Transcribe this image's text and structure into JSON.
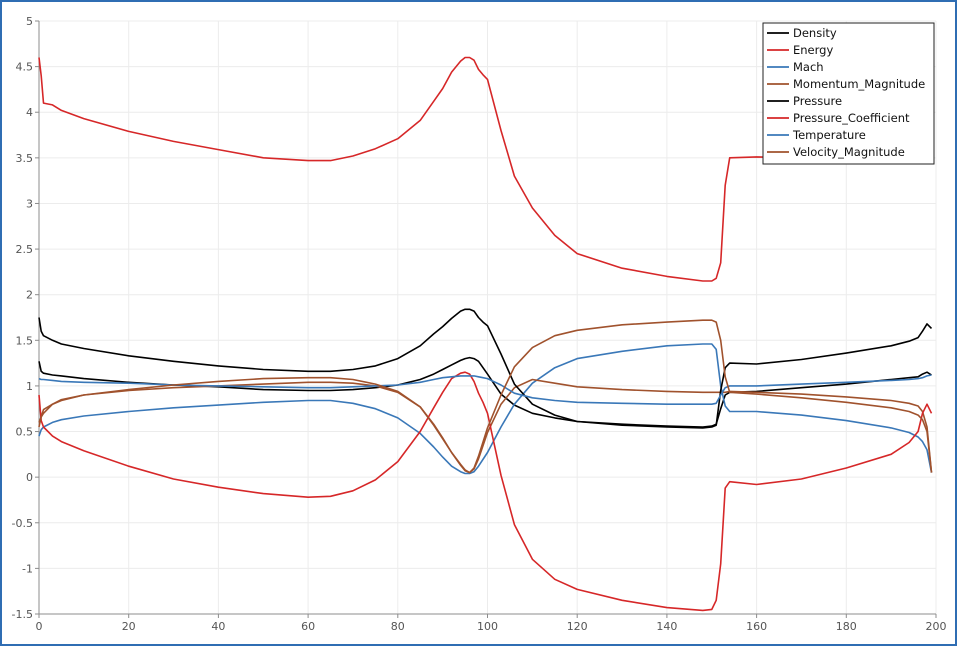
{
  "chart_data": {
    "type": "line",
    "xlim": [
      0,
      200
    ],
    "ylim": [
      -1.5,
      5
    ],
    "x_ticks": [
      "0",
      "20",
      "40",
      "60",
      "80",
      "100",
      "120",
      "140",
      "160",
      "180",
      "200"
    ],
    "y_ticks": [
      "5",
      "4.5",
      "4",
      "3.5",
      "3",
      "2.5",
      "2",
      "1.5",
      "1",
      "0.5",
      "0",
      "-0.5",
      "-1",
      "-1.5"
    ],
    "grid": true,
    "legend_position": "top-right",
    "series": [
      {
        "name": "Density",
        "color": "#000000",
        "x": [
          0,
          0.5,
          1,
          3,
          5,
          10,
          20,
          30,
          40,
          50,
          60,
          65,
          70,
          75,
          80,
          85,
          88,
          90,
          92,
          94,
          95,
          96,
          97,
          98,
          100,
          103,
          106,
          110,
          115,
          120,
          130,
          140,
          148,
          150,
          151,
          152,
          153,
          154,
          160,
          170,
          180,
          190,
          194,
          196,
          197,
          198,
          199
        ],
        "y": [
          1.27,
          1.16,
          1.14,
          1.12,
          1.11,
          1.08,
          1.04,
          1.01,
          0.99,
          0.96,
          0.95,
          0.95,
          0.96,
          0.98,
          1.01,
          1.07,
          1.13,
          1.18,
          1.23,
          1.28,
          1.3,
          1.31,
          1.3,
          1.27,
          1.13,
          0.91,
          0.79,
          0.7,
          0.65,
          0.61,
          0.58,
          0.56,
          0.55,
          0.56,
          0.58,
          0.75,
          0.9,
          0.93,
          0.94,
          0.98,
          1.02,
          1.07,
          1.09,
          1.1,
          1.13,
          1.15,
          1.12
        ]
      },
      {
        "name": "Energy",
        "color": "#d62728",
        "x": [
          0,
          0.5,
          1,
          3,
          5,
          10,
          20,
          30,
          40,
          50,
          60,
          65,
          70,
          75,
          80,
          85,
          88,
          90,
          92,
          94,
          95,
          96,
          97,
          98,
          99,
          100,
          103,
          106,
          110,
          115,
          120,
          130,
          140,
          148,
          150,
          151,
          152,
          153,
          154,
          160,
          170,
          180,
          190,
          194,
          196,
          197,
          198,
          199
        ],
        "y": [
          4.6,
          4.4,
          4.1,
          4.08,
          4.02,
          3.93,
          3.79,
          3.68,
          3.59,
          3.5,
          3.47,
          3.47,
          3.52,
          3.6,
          3.71,
          3.91,
          4.12,
          4.26,
          4.44,
          4.56,
          4.6,
          4.6,
          4.57,
          4.47,
          4.41,
          4.36,
          3.8,
          3.3,
          2.95,
          2.65,
          2.45,
          2.29,
          2.2,
          2.15,
          2.15,
          2.18,
          2.35,
          3.2,
          3.5,
          3.51,
          3.5,
          3.5,
          3.5,
          3.5,
          3.5,
          3.5,
          3.5,
          3.5
        ]
      },
      {
        "name": "Mach",
        "color": "#3a78b8",
        "x": [
          0,
          0.5,
          1,
          3,
          5,
          10,
          20,
          30,
          40,
          50,
          60,
          65,
          70,
          75,
          80,
          85,
          88,
          90,
          92,
          94,
          95,
          96,
          97,
          98,
          100,
          103,
          106,
          110,
          115,
          120,
          130,
          140,
          148,
          150,
          151,
          152,
          153,
          154,
          160,
          170,
          180,
          190,
          194,
          196,
          197,
          198,
          199
        ],
        "y": [
          0.45,
          0.52,
          0.55,
          0.6,
          0.63,
          0.67,
          0.72,
          0.76,
          0.79,
          0.82,
          0.84,
          0.84,
          0.81,
          0.75,
          0.65,
          0.48,
          0.33,
          0.22,
          0.12,
          0.06,
          0.04,
          0.04,
          0.06,
          0.12,
          0.27,
          0.55,
          0.8,
          1.03,
          1.2,
          1.3,
          1.38,
          1.44,
          1.46,
          1.46,
          1.4,
          1.0,
          0.78,
          0.72,
          0.72,
          0.68,
          0.62,
          0.54,
          0.49,
          0.44,
          0.39,
          0.3,
          0.05
        ]
      },
      {
        "name": "Momentum_Magnitude",
        "color": "#a0522d",
        "x": [
          0,
          0.5,
          1,
          3,
          5,
          10,
          20,
          30,
          40,
          50,
          60,
          65,
          70,
          75,
          80,
          85,
          88,
          90,
          92,
          94,
          95,
          96,
          97,
          98,
          100,
          103,
          106,
          110,
          115,
          120,
          130,
          140,
          148,
          150,
          151,
          152,
          153,
          154,
          160,
          170,
          180,
          190,
          194,
          196,
          197,
          198,
          199
        ],
        "y": [
          0.6,
          0.66,
          0.7,
          0.8,
          0.85,
          0.9,
          0.95,
          0.98,
          1.0,
          1.02,
          1.04,
          1.04,
          1.03,
          1.0,
          0.93,
          0.77,
          0.58,
          0.43,
          0.27,
          0.13,
          0.07,
          0.05,
          0.09,
          0.2,
          0.49,
          0.8,
          0.98,
          1.07,
          1.03,
          0.99,
          0.96,
          0.94,
          0.93,
          0.93,
          0.93,
          0.93,
          0.93,
          0.94,
          0.93,
          0.91,
          0.88,
          0.84,
          0.81,
          0.78,
          0.72,
          0.55,
          0.05
        ]
      },
      {
        "name": "Pressure",
        "color": "#000000",
        "x": [
          0,
          0.5,
          1,
          3,
          5,
          10,
          20,
          30,
          40,
          50,
          60,
          65,
          70,
          75,
          80,
          85,
          88,
          90,
          92,
          94,
          95,
          96,
          97,
          98,
          99,
          100,
          103,
          106,
          110,
          115,
          120,
          130,
          140,
          148,
          150,
          151,
          152,
          153,
          154,
          160,
          170,
          180,
          190,
          194,
          196,
          197,
          198,
          199
        ],
        "y": [
          1.75,
          1.6,
          1.55,
          1.5,
          1.46,
          1.41,
          1.33,
          1.27,
          1.22,
          1.18,
          1.16,
          1.16,
          1.18,
          1.22,
          1.3,
          1.44,
          1.57,
          1.65,
          1.74,
          1.82,
          1.84,
          1.84,
          1.82,
          1.75,
          1.7,
          1.66,
          1.35,
          1.02,
          0.8,
          0.68,
          0.61,
          0.57,
          0.55,
          0.54,
          0.55,
          0.57,
          0.95,
          1.2,
          1.25,
          1.24,
          1.29,
          1.36,
          1.44,
          1.49,
          1.53,
          1.6,
          1.68,
          1.63
        ]
      },
      {
        "name": "Pressure_Coefficient",
        "color": "#d62728",
        "x": [
          0,
          0.5,
          1,
          3,
          5,
          10,
          20,
          30,
          40,
          50,
          60,
          65,
          70,
          75,
          80,
          85,
          88,
          90,
          92,
          94,
          95,
          96,
          97,
          98,
          99,
          100,
          103,
          106,
          110,
          115,
          120,
          130,
          140,
          148,
          150,
          151,
          152,
          153,
          154,
          160,
          170,
          180,
          190,
          194,
          196,
          197,
          198,
          199
        ],
        "y": [
          0.9,
          0.62,
          0.55,
          0.45,
          0.39,
          0.29,
          0.12,
          -0.02,
          -0.11,
          -0.18,
          -0.22,
          -0.21,
          -0.15,
          -0.03,
          0.17,
          0.5,
          0.76,
          0.93,
          1.08,
          1.14,
          1.15,
          1.13,
          1.05,
          0.92,
          0.82,
          0.7,
          0.02,
          -0.52,
          -0.9,
          -1.12,
          -1.23,
          -1.35,
          -1.43,
          -1.46,
          -1.45,
          -1.35,
          -0.95,
          -0.12,
          -0.05,
          -0.08,
          -0.02,
          0.1,
          0.25,
          0.38,
          0.5,
          0.7,
          0.8,
          0.7
        ]
      },
      {
        "name": "Temperature",
        "color": "#3a78b8",
        "x": [
          0,
          0.5,
          1,
          3,
          5,
          10,
          20,
          30,
          40,
          50,
          60,
          65,
          70,
          75,
          80,
          85,
          88,
          90,
          92,
          94,
          95,
          96,
          97,
          98,
          99,
          100,
          103,
          106,
          110,
          115,
          120,
          130,
          140,
          148,
          150,
          151,
          152,
          153,
          154,
          160,
          170,
          180,
          190,
          194,
          196,
          197,
          198,
          199
        ],
        "y": [
          1.08,
          1.07,
          1.07,
          1.06,
          1.05,
          1.04,
          1.03,
          1.01,
          1.0,
          0.99,
          0.98,
          0.98,
          0.99,
          1.0,
          1.01,
          1.04,
          1.07,
          1.09,
          1.1,
          1.11,
          1.11,
          1.11,
          1.11,
          1.1,
          1.09,
          1.08,
          1.01,
          0.92,
          0.87,
          0.84,
          0.82,
          0.81,
          0.8,
          0.8,
          0.8,
          0.81,
          0.9,
          0.98,
          1.0,
          1.0,
          1.02,
          1.04,
          1.06,
          1.07,
          1.08,
          1.09,
          1.11,
          1.12
        ]
      },
      {
        "name": "Velocity_Magnitude",
        "color": "#a0522d",
        "x": [
          0,
          0.5,
          1,
          3,
          5,
          10,
          20,
          30,
          40,
          50,
          60,
          65,
          70,
          75,
          80,
          85,
          88,
          90,
          92,
          94,
          95,
          96,
          97,
          98,
          100,
          103,
          106,
          110,
          115,
          120,
          130,
          140,
          148,
          150,
          151,
          152,
          153,
          154,
          160,
          170,
          180,
          190,
          194,
          196,
          197,
          198,
          199
        ],
        "y": [
          0.55,
          0.66,
          0.74,
          0.8,
          0.84,
          0.9,
          0.96,
          1.01,
          1.05,
          1.08,
          1.09,
          1.09,
          1.07,
          1.02,
          0.94,
          0.77,
          0.57,
          0.42,
          0.27,
          0.14,
          0.08,
          0.05,
          0.1,
          0.23,
          0.54,
          0.9,
          1.21,
          1.42,
          1.55,
          1.61,
          1.67,
          1.7,
          1.72,
          1.72,
          1.7,
          1.5,
          1.1,
          0.93,
          0.91,
          0.87,
          0.82,
          0.76,
          0.72,
          0.68,
          0.63,
          0.5,
          0.05
        ]
      }
    ]
  }
}
